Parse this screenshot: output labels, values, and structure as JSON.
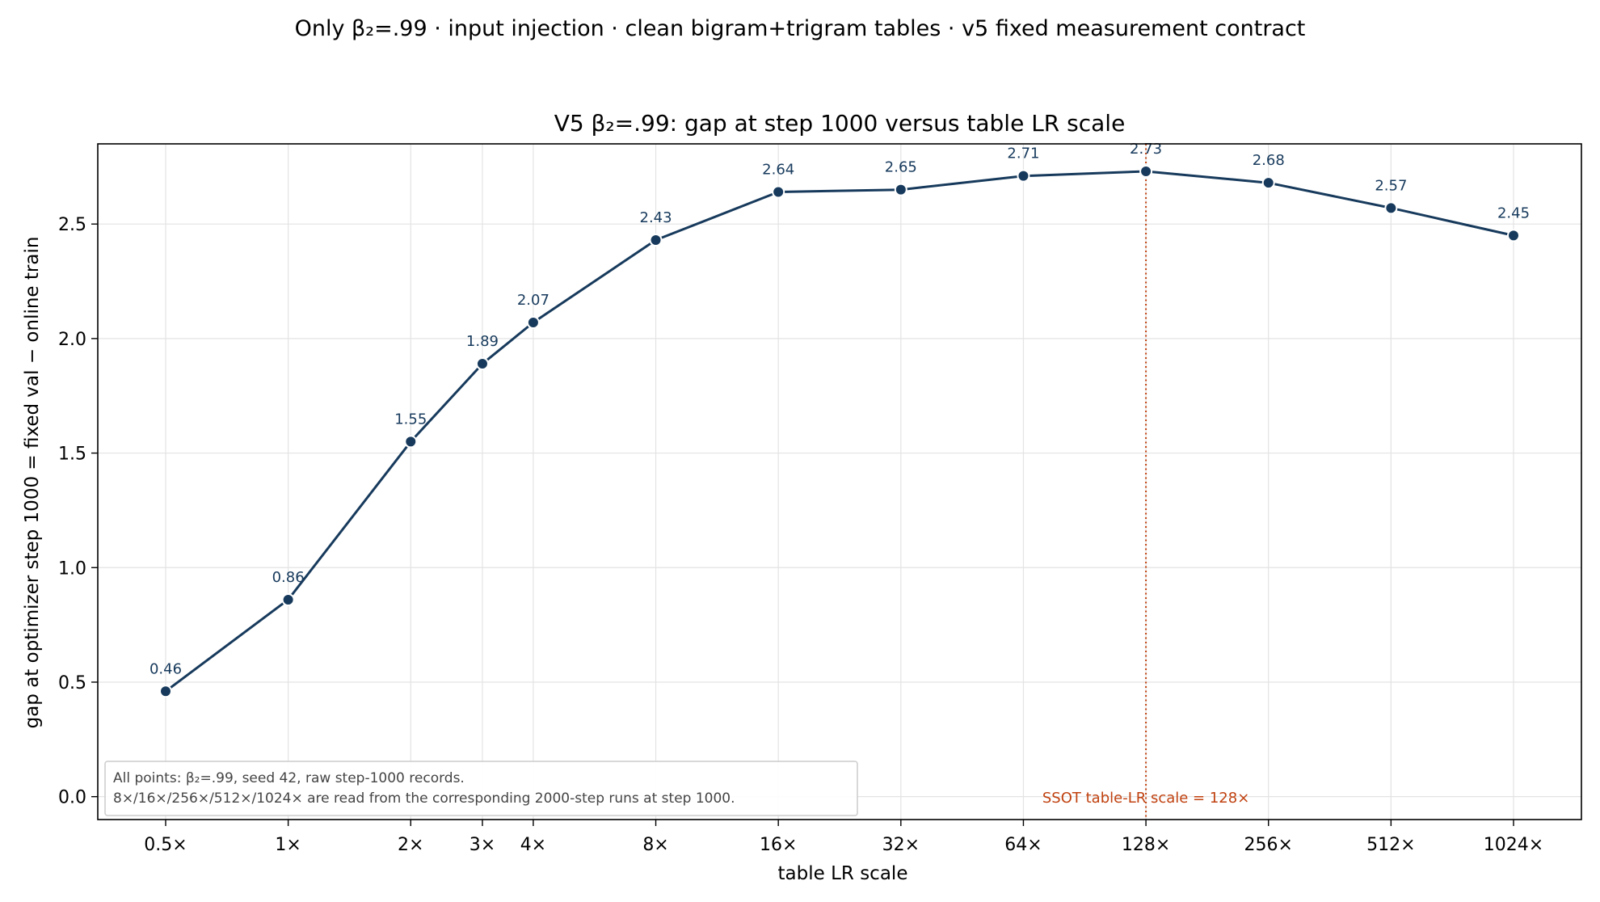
{
  "suptitle": "Only β₂=.99 · input injection · clean bigram+trigram tables · v5 fixed measurement contract",
  "chart_data": {
    "type": "line",
    "title": "V5 β₂=.99: gap at step 1000 versus table LR scale",
    "xlabel": "table LR scale",
    "ylabel": "gap at optimizer step 1000 = fixed val − online train",
    "x_scale": "log2",
    "x": [
      0.5,
      1,
      2,
      3,
      4,
      8,
      16,
      32,
      64,
      128,
      256,
      512,
      1024
    ],
    "x_tick_labels": [
      "0.5×",
      "1×",
      "2×",
      "3×",
      "4×",
      "8×",
      "16×",
      "32×",
      "64×",
      "128×",
      "256×",
      "512×",
      "1024×"
    ],
    "series": [
      {
        "values": [
          0.46,
          0.86,
          1.55,
          1.89,
          2.07,
          2.43,
          2.64,
          2.65,
          2.71,
          2.73,
          2.68,
          2.57,
          2.45
        ]
      }
    ],
    "data_labels": [
      "0.46",
      "0.86",
      "1.55",
      "1.89",
      "2.07",
      "2.43",
      "2.64",
      "2.65",
      "2.71",
      "2.73",
      "2.68",
      "2.57",
      "2.45"
    ],
    "ylim": [
      -0.1,
      2.85
    ],
    "y_ticks": [
      0.0,
      0.5,
      1.0,
      1.5,
      2.0,
      2.5
    ],
    "y_tick_labels": [
      "0.0",
      "0.5",
      "1.0",
      "1.5",
      "2.0",
      "2.5"
    ],
    "grid": true,
    "vline": {
      "x": 128,
      "label": "SSOT table-LR scale = 128×",
      "color": "#c0410f"
    },
    "note": [
      "All points: β₂=.99, seed 42, raw step-1000 records.",
      "8×/16×/256×/512×/1024× are read from the corresponding 2000-step runs at step 1000."
    ],
    "line_color": "#173a5c",
    "label_color": "#173a5c"
  }
}
